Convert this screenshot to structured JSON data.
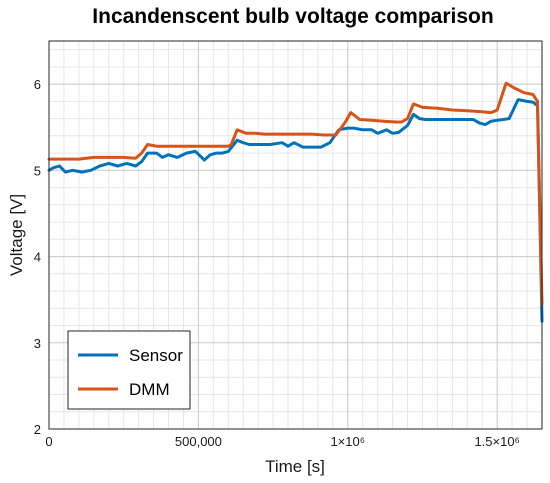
{
  "chart_data": {
    "type": "line",
    "title": "Incandenscent bulb voltage comparison",
    "xlabel": "Time [s]",
    "ylabel": "Voltage [V]",
    "xlim": [
      0,
      1650000
    ],
    "ylim": [
      2,
      6.5
    ],
    "grid": true,
    "minor_grid": true,
    "legend_position": "bottom-left",
    "x_ticks": [
      {
        "value": 0,
        "label": "0"
      },
      {
        "value": 500000,
        "label": "500,000"
      },
      {
        "value": 1000000,
        "label": "1×10⁶"
      },
      {
        "value": 1500000,
        "label": "1.5×10⁶"
      }
    ],
    "y_ticks": [
      {
        "value": 2,
        "label": "2"
      },
      {
        "value": 3,
        "label": "3"
      },
      {
        "value": 4,
        "label": "4"
      },
      {
        "value": 5,
        "label": "5"
      },
      {
        "value": 6,
        "label": "6"
      }
    ],
    "series": [
      {
        "name": "Sensor",
        "color": "#0072BD",
        "x": [
          0,
          15000,
          35000,
          55000,
          80000,
          110000,
          140000,
          170000,
          200000,
          230000,
          260000,
          290000,
          310000,
          330000,
          360000,
          380000,
          400000,
          430000,
          460000,
          490000,
          520000,
          540000,
          560000,
          580000,
          600000,
          630000,
          650000,
          670000,
          700000,
          740000,
          780000,
          800000,
          820000,
          850000,
          880000,
          910000,
          940000,
          970000,
          1000000,
          1020000,
          1050000,
          1080000,
          1100000,
          1130000,
          1150000,
          1170000,
          1200000,
          1220000,
          1240000,
          1260000,
          1300000,
          1340000,
          1370000,
          1390000,
          1420000,
          1440000,
          1460000,
          1480000,
          1500000,
          1520000,
          1540000,
          1570000,
          1600000,
          1620000,
          1635000,
          1650000
        ],
        "values": [
          5.0,
          5.03,
          5.05,
          4.98,
          5.0,
          4.98,
          5.0,
          5.05,
          5.08,
          5.05,
          5.08,
          5.05,
          5.1,
          5.2,
          5.2,
          5.15,
          5.18,
          5.15,
          5.2,
          5.22,
          5.12,
          5.18,
          5.2,
          5.2,
          5.22,
          5.35,
          5.32,
          5.3,
          5.3,
          5.3,
          5.32,
          5.28,
          5.32,
          5.27,
          5.27,
          5.27,
          5.32,
          5.47,
          5.49,
          5.49,
          5.47,
          5.47,
          5.43,
          5.47,
          5.43,
          5.44,
          5.52,
          5.65,
          5.6,
          5.59,
          5.59,
          5.59,
          5.59,
          5.59,
          5.59,
          5.55,
          5.53,
          5.57,
          5.58,
          5.59,
          5.6,
          5.82,
          5.8,
          5.79,
          5.75,
          3.25
        ]
      },
      {
        "name": "DMM",
        "color": "#D95319",
        "x": [
          0,
          50000,
          100000,
          150000,
          200000,
          250000,
          290000,
          310000,
          330000,
          360000,
          400000,
          450000,
          500000,
          550000,
          600000,
          610000,
          630000,
          660000,
          690000,
          720000,
          760000,
          800000,
          840000,
          880000,
          920000,
          960000,
          990000,
          1010000,
          1040000,
          1080000,
          1120000,
          1160000,
          1180000,
          1200000,
          1220000,
          1250000,
          1300000,
          1350000,
          1400000,
          1450000,
          1480000,
          1500000,
          1530000,
          1560000,
          1590000,
          1620000,
          1635000,
          1650000
        ],
        "values": [
          5.13,
          5.13,
          5.13,
          5.15,
          5.15,
          5.15,
          5.14,
          5.2,
          5.3,
          5.28,
          5.28,
          5.28,
          5.28,
          5.28,
          5.28,
          5.3,
          5.47,
          5.43,
          5.43,
          5.42,
          5.42,
          5.42,
          5.42,
          5.42,
          5.41,
          5.41,
          5.55,
          5.67,
          5.59,
          5.58,
          5.57,
          5.56,
          5.56,
          5.6,
          5.77,
          5.73,
          5.72,
          5.7,
          5.69,
          5.68,
          5.67,
          5.7,
          6.01,
          5.95,
          5.9,
          5.88,
          5.8,
          3.45
        ]
      }
    ]
  }
}
